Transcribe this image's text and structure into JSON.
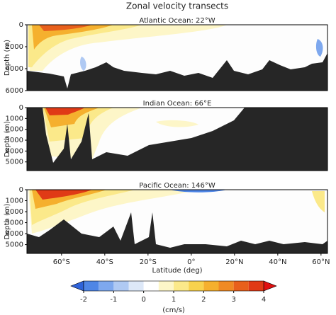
{
  "figure_title": "Zonal velocity transects",
  "chart_data": [
    {
      "type": "contour",
      "title": "Atlantic Ocean: 22°W",
      "ylabel": "Depth (m)",
      "ylim": [
        0,
        6000
      ],
      "yticks": [
        0,
        2000,
        4000,
        6000
      ],
      "xlim": [
        -76,
        63
      ]
    },
    {
      "type": "contour",
      "title": "Indian Ocean: 66°E",
      "ylabel": "Depth (m)",
      "ylim": [
        0,
        5800
      ],
      "yticks": [
        0,
        1000,
        2000,
        3000,
        4000,
        5000
      ],
      "xlim": [
        -76,
        63
      ]
    },
    {
      "type": "contour",
      "title": "Pacific Ocean: 146°W",
      "ylabel": "Depth (m)",
      "ylim": [
        0,
        5800
      ],
      "yticks": [
        0,
        1000,
        2000,
        3000,
        4000,
        5000
      ],
      "xlim": [
        -76,
        63
      ],
      "xlabel": "Latitude (deg)",
      "xticks": [
        {
          "value": -60,
          "label": "60°S"
        },
        {
          "value": -40,
          "label": "40°S"
        },
        {
          "value": -20,
          "label": "20°S"
        },
        {
          "value": 0,
          "label": "0°"
        },
        {
          "value": 20,
          "label": "20°N"
        },
        {
          "value": 40,
          "label": "40°N"
        },
        {
          "value": 60,
          "label": "60°N"
        }
      ]
    },
    {
      "type": "colorbar",
      "label": "(cm/s)",
      "levels": [
        -2,
        -1.5,
        -1,
        -0.5,
        0,
        0.5,
        1,
        1.5,
        2,
        2.5,
        3,
        3.5,
        4
      ],
      "colors": [
        "#4f86e6",
        "#7ea8ee",
        "#afc9f3",
        "#dde8f8",
        "#ffffff",
        "#fdf6c8",
        "#fbe98a",
        "#f8d24d",
        "#f5b02e",
        "#f08a24",
        "#e8601c",
        "#e03a16"
      ],
      "under_color": "#2f63d9",
      "over_color": "#e01010",
      "ticks": [
        -2,
        -1,
        0,
        1,
        2,
        3,
        4
      ]
    }
  ]
}
